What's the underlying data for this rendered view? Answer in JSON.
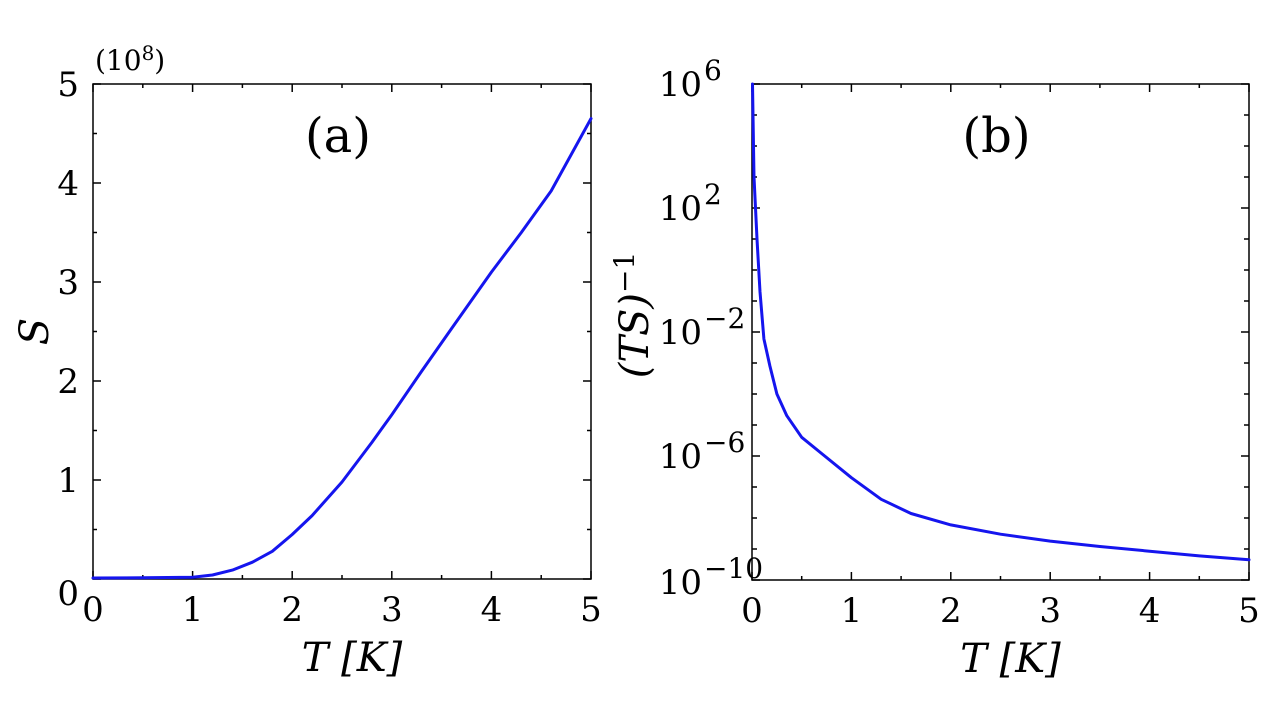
{
  "chart_data": [
    {
      "type": "line",
      "panel_label": "(a)",
      "xlabel": "T [K]",
      "ylabel": "S",
      "y_multiplier": "(10",
      "y_multiplier_exp": "8",
      "y_multiplier_close": ")",
      "xlim": [
        0,
        5
      ],
      "ylim": [
        0,
        5
      ],
      "x_ticks": [
        0,
        1,
        2,
        3,
        4,
        5
      ],
      "x_tick_labels": [
        "0",
        "1",
        "2",
        "3",
        "4",
        "5"
      ],
      "y_ticks": [
        0,
        1,
        2,
        3,
        4,
        5
      ],
      "y_tick_labels": [
        "0",
        "1",
        "2",
        "3",
        "4",
        "5"
      ],
      "grid": false,
      "color": "#1515ee",
      "series": [
        {
          "x": [
            0,
            0.5,
            1.0,
            1.2,
            1.4,
            1.6,
            1.8,
            2.0,
            2.2,
            2.5,
            2.8,
            3.0,
            3.3,
            3.6,
            4.0,
            4.3,
            4.6,
            5.0
          ],
          "values": [
            0.01,
            0.012,
            0.018,
            0.04,
            0.09,
            0.17,
            0.28,
            0.45,
            0.64,
            0.98,
            1.38,
            1.66,
            2.1,
            2.53,
            3.1,
            3.5,
            3.92,
            4.65
          ]
        }
      ]
    },
    {
      "type": "line",
      "panel_label": "(b)",
      "xlabel": "T [K]",
      "ylabel": "(TS)",
      "ylabel_exp": "−1",
      "y_scale": "log",
      "xlim": [
        0,
        5
      ],
      "ylim": [
        1e-10,
        1000000.0
      ],
      "x_ticks": [
        0,
        1,
        2,
        3,
        4,
        5
      ],
      "x_tick_labels": [
        "0",
        "1",
        "2",
        "3",
        "4",
        "5"
      ],
      "y_ticks": [
        -10,
        -6,
        -2,
        2,
        6
      ],
      "y_tick_labels": [
        "10",
        "10",
        "10",
        "10",
        "10"
      ],
      "y_tick_exps": [
        "−10",
        "−6",
        "−2",
        "2",
        "6"
      ],
      "grid": false,
      "color": "#1515ee",
      "series": [
        {
          "x": [
            0.005,
            0.02,
            0.05,
            0.08,
            0.12,
            0.18,
            0.25,
            0.35,
            0.5,
            0.7,
            1.0,
            1.3,
            1.6,
            2.0,
            2.5,
            3.0,
            3.5,
            4.0,
            4.5,
            5.0
          ],
          "values": [
            1000000.0,
            1000.0,
            10,
            0.2,
            0.006,
            0.0008,
            0.0001,
            2e-05,
            4e-06,
            1.2e-06,
            2e-07,
            4e-08,
            1.4e-08,
            6e-09,
            3e-09,
            1.8e-09,
            1.2e-09,
            8.5e-10,
            6e-10,
            4.5e-10
          ]
        }
      ]
    }
  ]
}
